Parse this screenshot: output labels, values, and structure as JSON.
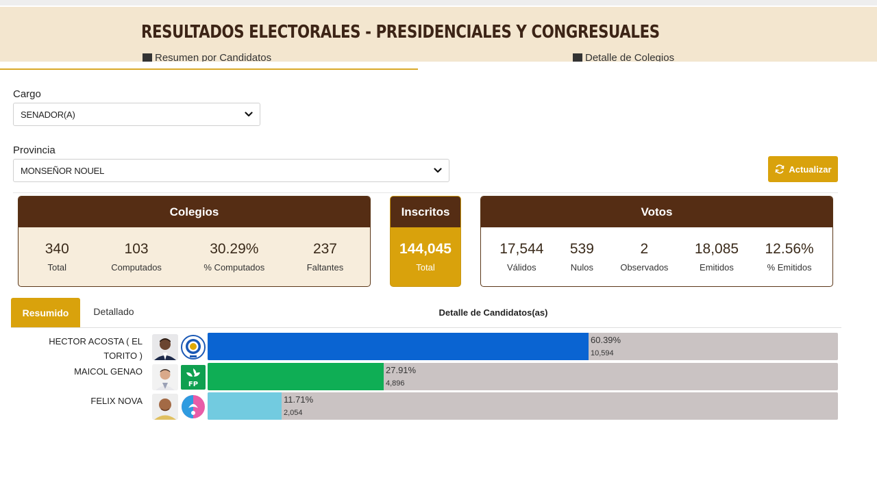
{
  "header": {
    "title": "RESULTADOS ELECTORALES - PRESIDENCIALES Y CONGRESUALES"
  },
  "tabs": {
    "left_label": "Resumen por Candidatos",
    "right_label": "Detalle de Colegios"
  },
  "filters": {
    "cargo_label": "Cargo",
    "cargo_value": "SENADOR(A)",
    "provincia_label": "Provincia",
    "provincia_value": "MONSEÑOR NOUEL"
  },
  "actions": {
    "actualizar_label": "Actualizar"
  },
  "colegios": {
    "title": "Colegios",
    "stats": [
      {
        "value": "340",
        "label": "Total"
      },
      {
        "value": "103",
        "label": "Computados"
      },
      {
        "value": "30.29%",
        "label": "% Computados"
      },
      {
        "value": "237",
        "label": "Faltantes"
      }
    ]
  },
  "inscritos": {
    "title": "Inscritos",
    "value": "144,045",
    "label": "Total"
  },
  "votos": {
    "title": "Votos",
    "stats": [
      {
        "value": "17,544",
        "label": "Válidos"
      },
      {
        "value": "539",
        "label": "Nulos"
      },
      {
        "value": "2",
        "label": "Observados"
      },
      {
        "value": "18,085",
        "label": "Emitidos"
      },
      {
        "value": "12.56%",
        "label": "% Emitidos"
      }
    ]
  },
  "results": {
    "tab_resumido": "Resumido",
    "tab_detallado": "Detallado",
    "section_title": "Detalle de Candidatos(as)",
    "candidates": [
      {
        "name": "HECTOR ACOSTA ( EL TORITO )",
        "percent_label": "60.39%",
        "percent": 60.39,
        "votes": "10,594",
        "color": "#0a64d2",
        "party_icon": "prm-party-logo-icon"
      },
      {
        "name": "MAICOL GENAO",
        "percent_label": "27.91%",
        "percent": 27.91,
        "votes": "4,896",
        "color": "#0fae55",
        "party_icon": "fp-party-logo-icon"
      },
      {
        "name": "FELIX NOVA",
        "percent_label": "11.71%",
        "percent": 11.71,
        "votes": "2,054",
        "color": "#72cbe0",
        "party_icon": "pld-party-logo-icon"
      }
    ]
  }
}
